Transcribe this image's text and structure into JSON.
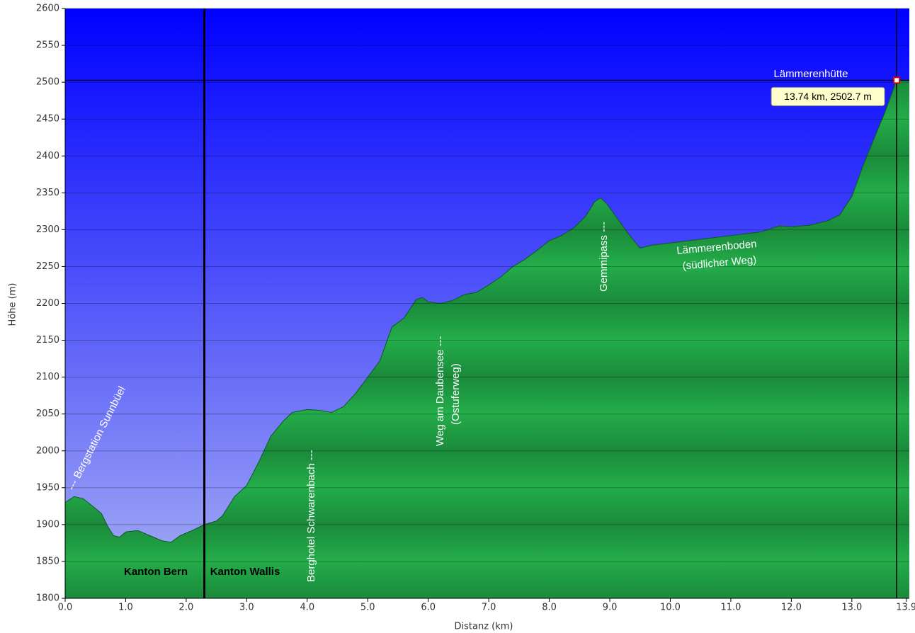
{
  "chart_data": {
    "type": "area",
    "xlabel": "Distanz  (km)",
    "ylabel": "Höhe (m)",
    "x": [
      0.0,
      0.15,
      0.3,
      0.5,
      0.6,
      0.7,
      0.8,
      0.9,
      1.0,
      1.2,
      1.4,
      1.6,
      1.75,
      1.9,
      2.1,
      2.3,
      2.5,
      2.6,
      2.8,
      3.0,
      3.2,
      3.4,
      3.6,
      3.75,
      4.0,
      4.2,
      4.4,
      4.6,
      4.8,
      5.0,
      5.2,
      5.4,
      5.6,
      5.8,
      5.9,
      6.0,
      6.2,
      6.4,
      6.6,
      6.8,
      7.0,
      7.2,
      7.4,
      7.6,
      7.8,
      8.0,
      8.2,
      8.4,
      8.6,
      8.75,
      8.85,
      8.95,
      9.1,
      9.3,
      9.5,
      9.7,
      10.0,
      10.5,
      11.0,
      11.5,
      11.8,
      12.0,
      12.3,
      12.6,
      12.8,
      13.0,
      13.2,
      13.4,
      13.55,
      13.74,
      13.95
    ],
    "values": [
      1930,
      1938,
      1935,
      1922,
      1915,
      1898,
      1885,
      1883,
      1890,
      1892,
      1885,
      1878,
      1876,
      1885,
      1892,
      1900,
      1905,
      1912,
      1938,
      1953,
      1985,
      2020,
      2040,
      2052,
      2056,
      2055,
      2052,
      2060,
      2078,
      2100,
      2122,
      2168,
      2180,
      2205,
      2208,
      2202,
      2200,
      2204,
      2212,
      2215,
      2225,
      2236,
      2250,
      2260,
      2272,
      2285,
      2292,
      2302,
      2318,
      2338,
      2343,
      2335,
      2318,
      2295,
      2275,
      2279,
      2282,
      2287,
      2292,
      2297,
      2305,
      2304,
      2306,
      2312,
      2320,
      2345,
      2390,
      2430,
      2460,
      2502.7,
      2502
    ],
    "xlim": [
      0,
      13.95
    ],
    "ylim": [
      1800,
      2600
    ],
    "xticks": [
      {
        "value": 0,
        "label": "0.0"
      },
      {
        "value": 1,
        "label": "1.0"
      },
      {
        "value": 2,
        "label": "2.0"
      },
      {
        "value": 3,
        "label": "3.0"
      },
      {
        "value": 4,
        "label": "4.0"
      },
      {
        "value": 5,
        "label": "5.0"
      },
      {
        "value": 6,
        "label": "6.0"
      },
      {
        "value": 7,
        "label": "7.0"
      },
      {
        "value": 8,
        "label": "8.0"
      },
      {
        "value": 9,
        "label": "9.0"
      },
      {
        "value": 10,
        "label": "10.0"
      },
      {
        "value": 11,
        "label": "11.0"
      },
      {
        "value": 12,
        "label": "12.0"
      },
      {
        "value": 13,
        "label": "13.0"
      },
      13.9
    ],
    "yticks": [
      1800,
      1850,
      1900,
      1950,
      2000,
      2050,
      2100,
      2150,
      2200,
      2250,
      2300,
      2350,
      2400,
      2450,
      2500,
      2550,
      2600
    ],
    "grid": true,
    "boundary_x": 2.3,
    "cursor": {
      "x": 13.74,
      "y": 2502.7,
      "label": "13.74 km, 2502.7 m"
    },
    "annotations": [
      "--- Bergstation Sunnbüel",
      "Kanton Bern",
      "Kanton Wallis",
      "Berghotel Schwarenbach ---",
      "Weg am Daubensee ---",
      "(Ostuferweg)",
      "Gemmipass ---",
      "Lämmerenboden",
      "(südlicher Weg)",
      "Lämmerenhütte"
    ]
  }
}
